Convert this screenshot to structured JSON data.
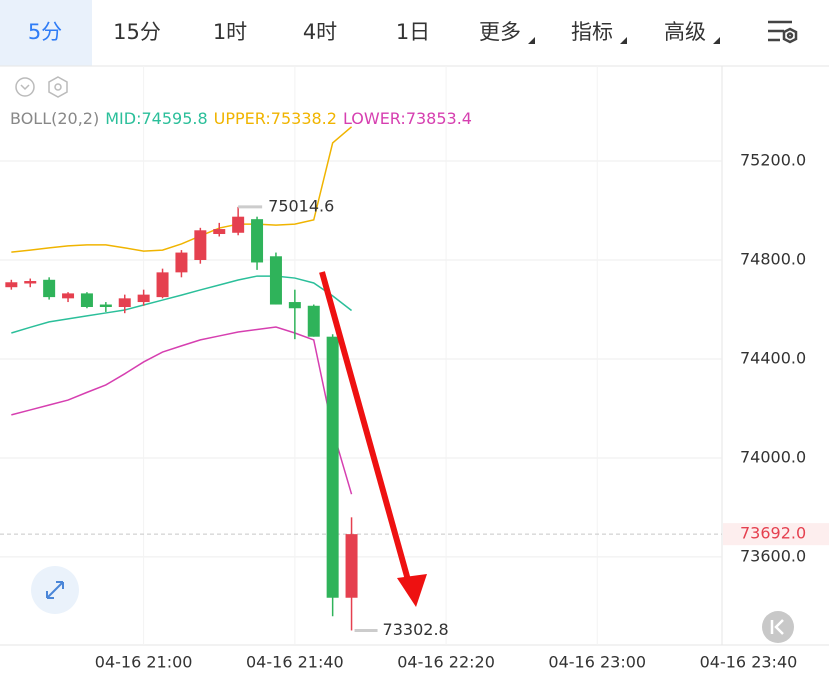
{
  "toolbar": {
    "tabs": [
      "5分",
      "15分",
      "1时",
      "4时",
      "1日",
      "更多",
      "指标",
      "高级"
    ],
    "selected": 0
  },
  "chart_data": {
    "type": "candlestick",
    "x": [
      "04-16 20:25",
      "04-16 20:30",
      "04-16 20:35",
      "04-16 20:40",
      "04-16 20:45",
      "04-16 20:50",
      "04-16 20:55",
      "04-16 21:00",
      "04-16 21:05",
      "04-16 21:10",
      "04-16 21:15",
      "04-16 21:20",
      "04-16 21:25",
      "04-16 21:30",
      "04-16 21:35",
      "04-16 21:40",
      "04-16 21:45",
      "04-16 21:50",
      "04-16 21:55"
    ],
    "open": [
      74690,
      74705,
      74720,
      74645,
      74665,
      74620,
      74610,
      74630,
      74650,
      74750,
      74800,
      74905,
      74910,
      74965,
      74815,
      74630,
      74615,
      74490,
      73435
    ],
    "high": [
      74720,
      74725,
      74730,
      74670,
      74670,
      74630,
      74660,
      74680,
      74765,
      74840,
      74930,
      74950,
      75014.6,
      74975,
      74830,
      74680,
      74620,
      74500,
      73760
    ],
    "low": [
      74680,
      74690,
      74640,
      74630,
      74605,
      74590,
      74585,
      74615,
      74645,
      74730,
      74785,
      74895,
      74900,
      74760,
      74620,
      74480,
      74490,
      73360,
      73302.8
    ],
    "close": [
      74710,
      74715,
      74650,
      74665,
      74610,
      74610,
      74645,
      74660,
      74750,
      74830,
      74920,
      74925,
      74975,
      74790,
      74620,
      74605,
      74490,
      73435,
      73692
    ],
    "up_color": "#e5404f",
    "down_color": "#2fb35a",
    "ylim": [
      73244,
      75584
    ],
    "yticks": [
      {
        "value": 73600,
        "label": "73600.0"
      },
      {
        "value": 74000,
        "label": "74000.0"
      },
      {
        "value": 74400,
        "label": "74400.0"
      },
      {
        "value": 74800,
        "label": "74800.0"
      },
      {
        "value": 75200,
        "label": "75200.0"
      }
    ],
    "xlim": [
      "04-16 20:22",
      "04-16 23:33"
    ],
    "xticks": [
      "04-16 21:00",
      "04-16 21:40",
      "04-16 22:20",
      "04-16 23:00",
      "04-16 23:40"
    ],
    "grid": true,
    "high_label": "75014.6",
    "low_label": "73302.8",
    "last_price_label": "73692.0",
    "indicator": {
      "name": "BOLL(20,2)",
      "series": [
        {
          "name": "MID",
          "legend_label": "MID:74595.8",
          "color": "#2bbf9a",
          "values": [
            74505,
            74528,
            74550,
            74562,
            74574,
            74586,
            74598,
            74618,
            74638,
            74658,
            74679,
            74699,
            74719,
            74735,
            74735,
            74727,
            74707,
            74655,
            74595.8
          ]
        },
        {
          "name": "UPPER",
          "legend_label": "UPPER:75338.2",
          "color": "#f0b400",
          "values": [
            74832,
            74840,
            74849,
            74857,
            74861,
            74861,
            74849,
            74836,
            74840,
            74865,
            74897,
            74929,
            74945,
            74945,
            74941,
            74945,
            74962,
            75273,
            75338.2
          ]
        },
        {
          "name": "LOWER",
          "legend_label": "LOWER:73853.4",
          "color": "#d63fb0",
          "values": [
            74174,
            74194,
            74214,
            74234,
            74265,
            74295,
            74340,
            74388,
            74428,
            74453,
            74477,
            74493,
            74509,
            74519,
            74529,
            74505,
            74477,
            74113,
            73853.4
          ]
        }
      ]
    }
  }
}
